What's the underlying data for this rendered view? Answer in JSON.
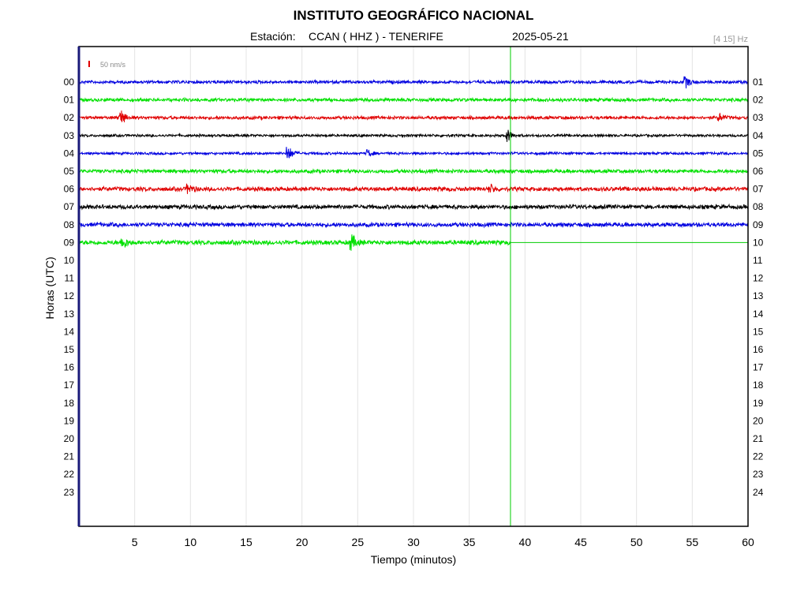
{
  "header": {
    "title": "INSTITUTO GEOGRÁFICO NACIONAL",
    "station_label": "Estación:",
    "station": "CCAN ( HHZ ) - TENERIFE",
    "date": "2025-05-21",
    "filter": "[4 15] Hz"
  },
  "colors": {
    "blue": "#0000e0",
    "green": "#00e000",
    "red": "#e00000",
    "black": "#000000",
    "frame": "#000000",
    "frame_left": "#1a1a7a",
    "grid": "#e4e4e4",
    "cursor": "#00cc00"
  },
  "chart_data": {
    "type": "line",
    "xlabel": "Tiempo (minutos)",
    "ylabel": "Horas (UTC)",
    "xlim": [
      0,
      60
    ],
    "x_ticks": [
      "5",
      "10",
      "15",
      "20",
      "25",
      "30",
      "35",
      "40",
      "45",
      "50",
      "55",
      "60"
    ],
    "hours_left": [
      "00",
      "01",
      "02",
      "03",
      "04",
      "05",
      "06",
      "07",
      "08",
      "09",
      "10",
      "11",
      "12",
      "13",
      "14",
      "15",
      "16",
      "17",
      "18",
      "19",
      "20",
      "21",
      "22",
      "23"
    ],
    "hours_right": [
      "01",
      "02",
      "03",
      "04",
      "05",
      "06",
      "07",
      "08",
      "09",
      "10",
      "11",
      "12",
      "13",
      "14",
      "15",
      "16",
      "17",
      "18",
      "19",
      "20",
      "21",
      "22",
      "23",
      "24"
    ],
    "scale_bar": "50 nm/s",
    "current_time_minute": 38.7,
    "current_hour_index": 9,
    "color_cycle": [
      "blue",
      "green",
      "red",
      "black"
    ],
    "traces": [
      {
        "hour": "00",
        "color": "blue",
        "noise": 2.2,
        "events": [
          {
            "minute": 54.5,
            "amplitude": 6
          }
        ]
      },
      {
        "hour": "01",
        "color": "green",
        "noise": 2.4,
        "events": []
      },
      {
        "hour": "02",
        "color": "red",
        "noise": 2.3,
        "events": [
          {
            "minute": 3.8,
            "amplitude": 9
          },
          {
            "minute": 57.5,
            "amplitude": 4
          }
        ]
      },
      {
        "hour": "03",
        "color": "black",
        "noise": 1.8,
        "events": [
          {
            "minute": 38.5,
            "amplitude": 7
          }
        ]
      },
      {
        "hour": "04",
        "color": "blue",
        "noise": 1.8,
        "events": [
          {
            "minute": 18.8,
            "amplitude": 9
          },
          {
            "minute": 26,
            "amplitude": 4
          }
        ]
      },
      {
        "hour": "05",
        "color": "green",
        "noise": 2.6,
        "events": []
      },
      {
        "hour": "06",
        "color": "red",
        "noise": 3.0,
        "events": [
          {
            "minute": 9.9,
            "amplitude": 5
          },
          {
            "minute": 37,
            "amplitude": 4
          }
        ]
      },
      {
        "hour": "07",
        "color": "black",
        "noise": 3.0,
        "events": []
      },
      {
        "hour": "08",
        "color": "blue",
        "noise": 3.0,
        "events": []
      },
      {
        "hour": "09",
        "color": "green",
        "noise": 3.2,
        "end_minute": 38.7,
        "events": [
          {
            "minute": 4,
            "amplitude": 7
          },
          {
            "minute": 24.5,
            "amplitude": 9
          }
        ]
      }
    ]
  }
}
